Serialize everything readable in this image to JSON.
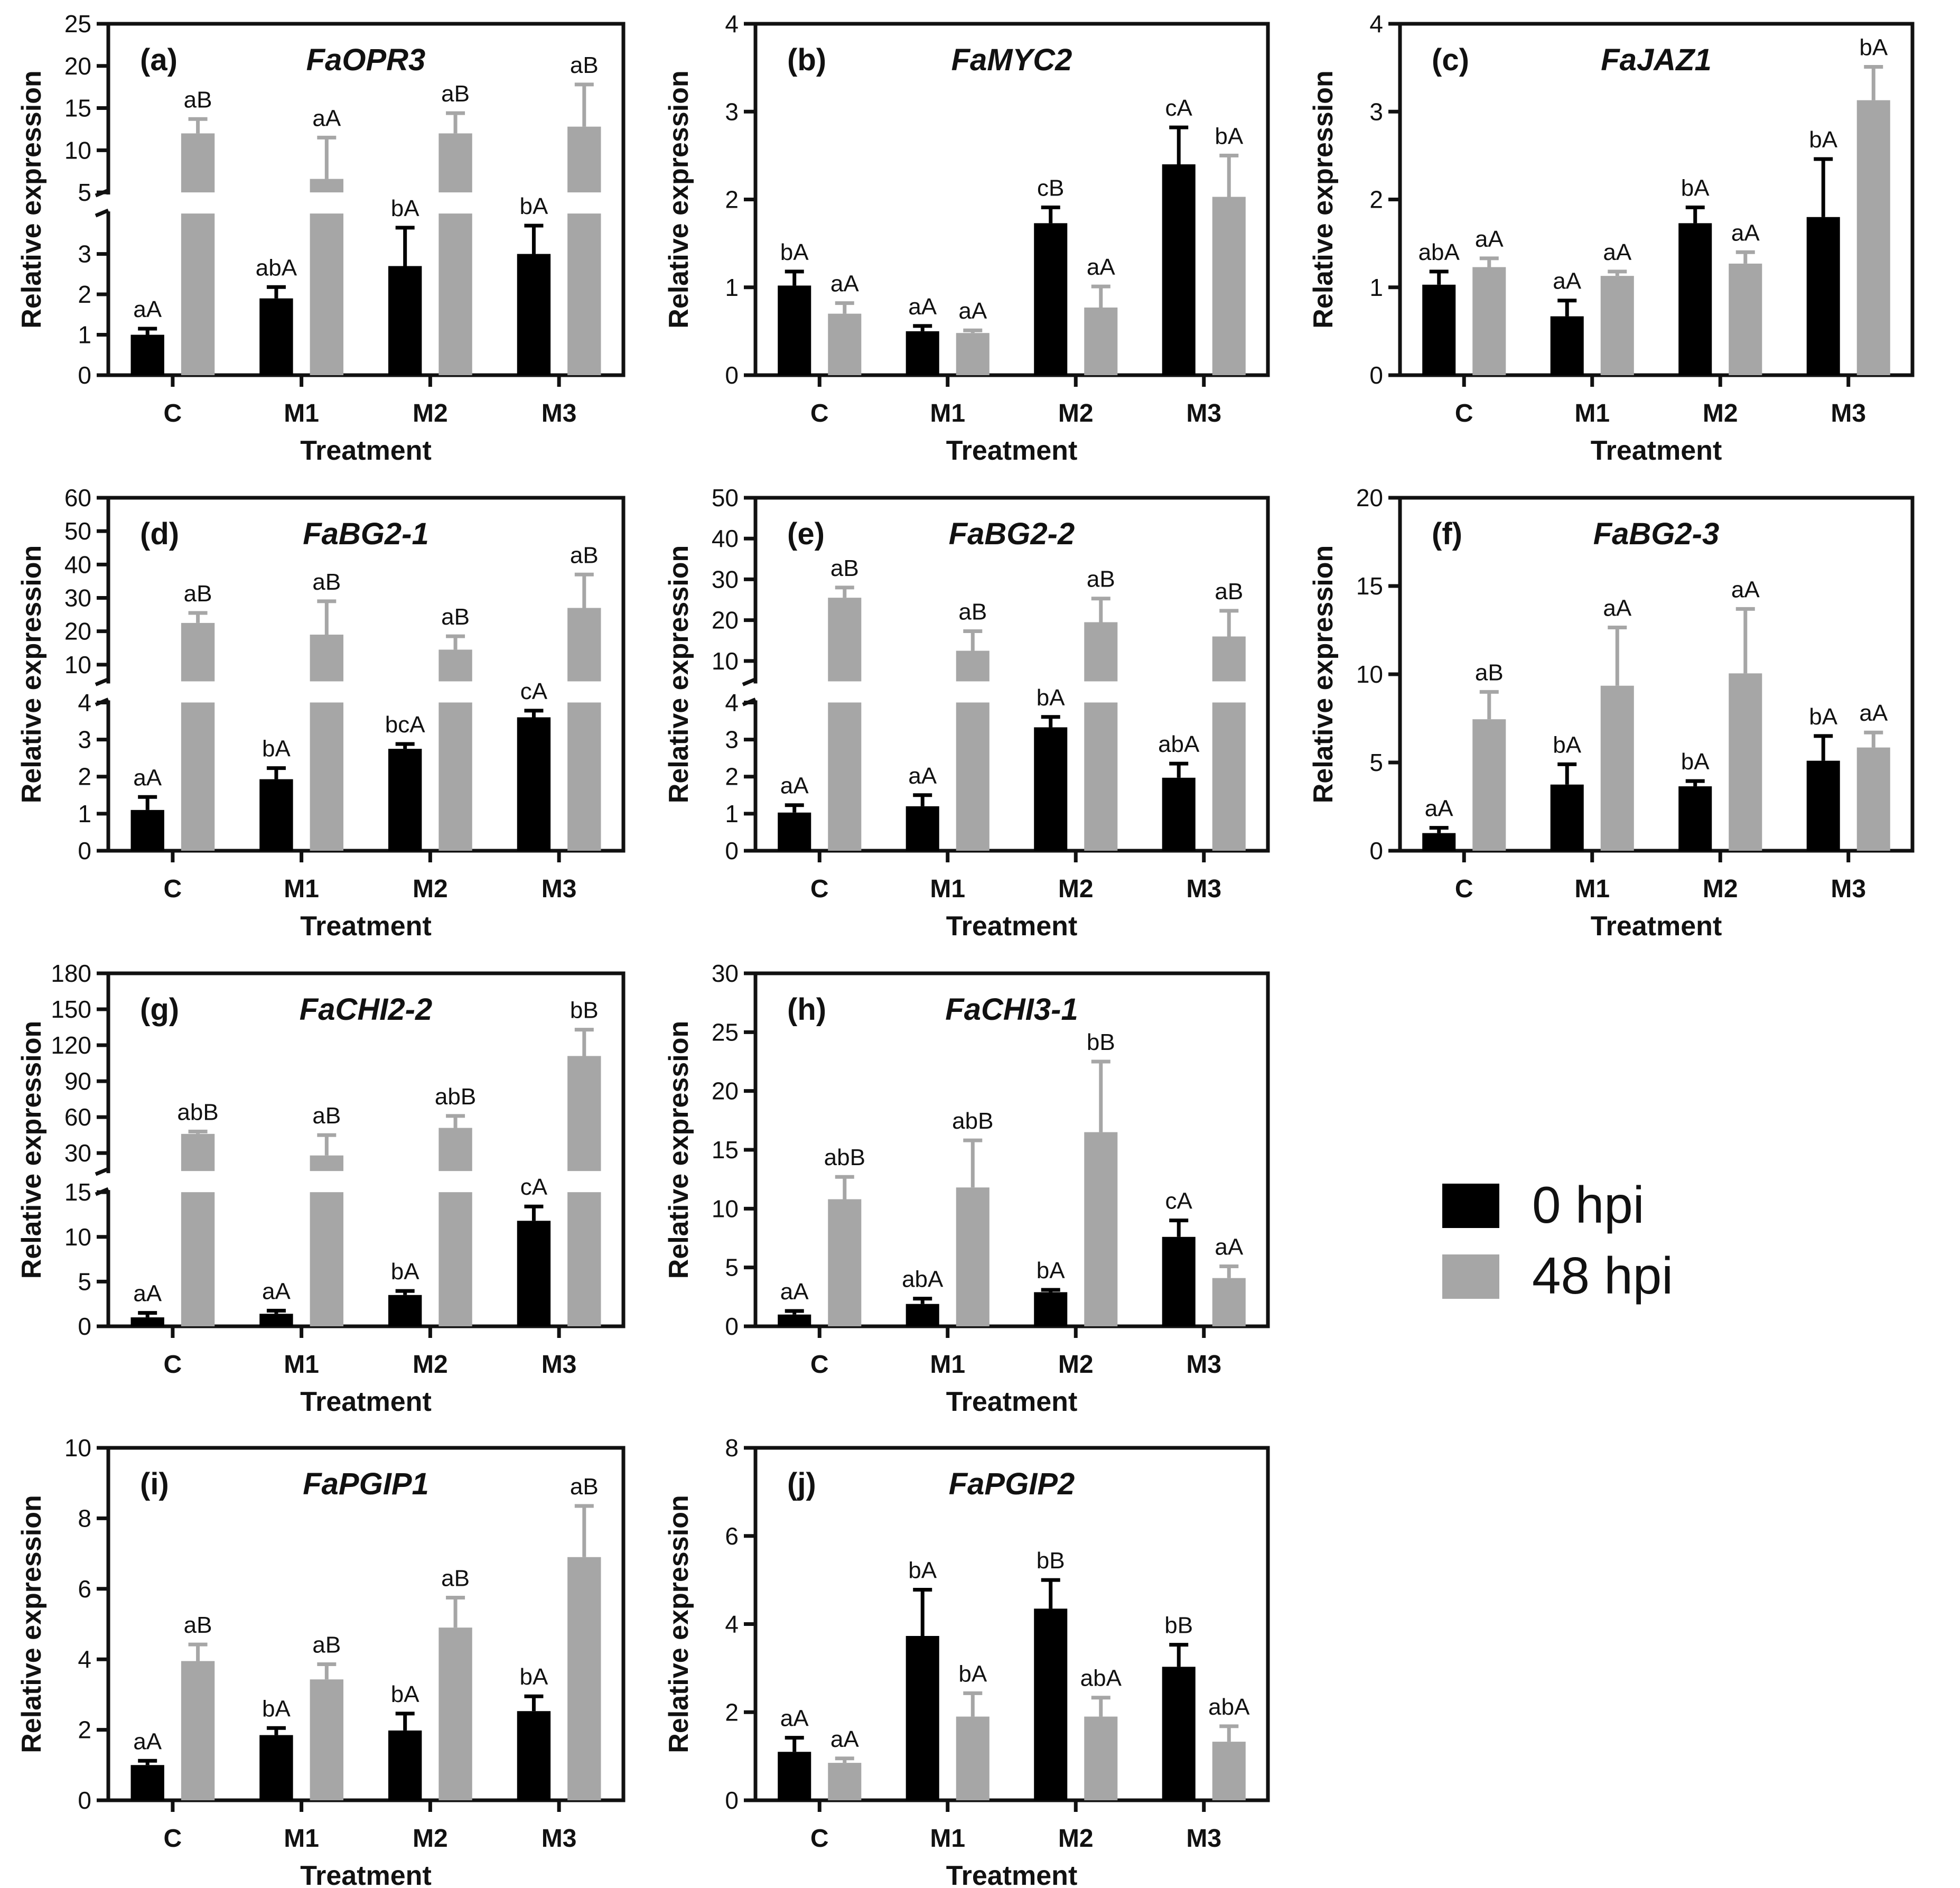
{
  "figure": {
    "legend": [
      {
        "label": "0 hpi",
        "color": "#000000"
      },
      {
        "label": "48 hpi",
        "color": "#A6A6A6"
      }
    ],
    "colors": {
      "series_0hpi": "#000000",
      "series_48hpi": "#A6A6A6",
      "axis": "#111111"
    }
  },
  "chart_data": [
    {
      "type": "bar",
      "panel": "(a)",
      "title": "FaOPR3",
      "xlabel": "Treatment",
      "ylabel": "Relative expression",
      "categories": [
        "C",
        "M1",
        "M2",
        "M3"
      ],
      "broken_axis": true,
      "lower_range": [
        0,
        4
      ],
      "lower_ticks": [
        0,
        1,
        2,
        3
      ],
      "upper_range": [
        5,
        25
      ],
      "upper_ticks": [
        5,
        10,
        15,
        20,
        25
      ],
      "series": [
        {
          "name": "0 hpi",
          "values": [
            1.0,
            1.9,
            2.7,
            3.0
          ],
          "errors": [
            0.15,
            0.28,
            0.95,
            0.7
          ],
          "labels": [
            "aA",
            "abA",
            "bA",
            "bA"
          ]
        },
        {
          "name": "48 hpi",
          "values": [
            12.0,
            6.6,
            12.0,
            12.8
          ],
          "errors": [
            1.7,
            4.9,
            2.4,
            5.0
          ],
          "labels": [
            "aB",
            "aA",
            "aB",
            "aB"
          ]
        }
      ]
    },
    {
      "type": "bar",
      "panel": "(b)",
      "title": "FaMYC2",
      "xlabel": "Treatment",
      "ylabel": "Relative expression",
      "categories": [
        "C",
        "M1",
        "M2",
        "M3"
      ],
      "broken_axis": false,
      "ylim": [
        0,
        4
      ],
      "ticks": [
        0,
        1,
        2,
        3,
        4
      ],
      "series": [
        {
          "name": "0 hpi",
          "values": [
            1.02,
            0.5,
            1.73,
            2.4
          ],
          "errors": [
            0.16,
            0.06,
            0.18,
            0.42
          ],
          "labels": [
            "bA",
            "aA",
            "cB",
            "cA"
          ]
        },
        {
          "name": "48 hpi",
          "values": [
            0.7,
            0.48,
            0.77,
            2.03
          ],
          "errors": [
            0.12,
            0.03,
            0.24,
            0.47
          ],
          "labels": [
            "aA",
            "aA",
            "aA",
            "bA"
          ]
        }
      ]
    },
    {
      "type": "bar",
      "panel": "(c)",
      "title": "FaJAZ1",
      "xlabel": "Treatment",
      "ylabel": "Relative expression",
      "categories": [
        "C",
        "M1",
        "M2",
        "M3"
      ],
      "broken_axis": false,
      "ylim": [
        0,
        4
      ],
      "ticks": [
        0,
        1,
        2,
        3,
        4
      ],
      "series": [
        {
          "name": "0 hpi",
          "values": [
            1.03,
            0.67,
            1.73,
            1.8
          ],
          "errors": [
            0.15,
            0.18,
            0.18,
            0.66
          ],
          "labels": [
            "abA",
            "aA",
            "bA",
            "bA"
          ]
        },
        {
          "name": "48 hpi",
          "values": [
            1.23,
            1.13,
            1.27,
            3.13
          ],
          "errors": [
            0.1,
            0.05,
            0.13,
            0.38
          ],
          "labels": [
            "aA",
            "aA",
            "aA",
            "bA"
          ]
        }
      ]
    },
    {
      "type": "bar",
      "panel": "(d)",
      "title": "FaBG2-1",
      "xlabel": "Treatment",
      "ylabel": "Relative expression",
      "categories": [
        "C",
        "M1",
        "M2",
        "M3"
      ],
      "broken_axis": true,
      "lower_range": [
        0,
        4
      ],
      "lower_ticks": [
        0,
        1,
        2,
        3,
        4
      ],
      "upper_range": [
        5,
        60
      ],
      "upper_ticks": [
        10,
        20,
        30,
        40,
        50,
        60
      ],
      "series": [
        {
          "name": "0 hpi",
          "values": [
            1.1,
            1.93,
            2.75,
            3.6
          ],
          "errors": [
            0.35,
            0.3,
            0.13,
            0.18
          ],
          "labels": [
            "aA",
            "bA",
            "bcA",
            "cA"
          ]
        },
        {
          "name": "48 hpi",
          "values": [
            22.5,
            19.0,
            14.5,
            27.0
          ],
          "errors": [
            3.0,
            10.0,
            4.0,
            10.0
          ],
          "labels": [
            "aB",
            "aB",
            "aB",
            "aB"
          ]
        }
      ]
    },
    {
      "type": "bar",
      "panel": "(e)",
      "title": "FaBG2-2",
      "xlabel": "Treatment",
      "ylabel": "Relative expression",
      "categories": [
        "C",
        "M1",
        "M2",
        "M3"
      ],
      "broken_axis": true,
      "lower_range": [
        0,
        4
      ],
      "lower_ticks": [
        0,
        1,
        2,
        3,
        4
      ],
      "upper_range": [
        5,
        50
      ],
      "upper_ticks": [
        10,
        20,
        30,
        40,
        50
      ],
      "series": [
        {
          "name": "0 hpi",
          "values": [
            1.03,
            1.2,
            3.33,
            1.97
          ],
          "errors": [
            0.2,
            0.3,
            0.28,
            0.38
          ],
          "labels": [
            "aA",
            "aA",
            "bA",
            "abA"
          ]
        },
        {
          "name": "48 hpi",
          "values": [
            25.5,
            12.5,
            19.5,
            16.0
          ],
          "errors": [
            2.5,
            4.8,
            5.8,
            6.3
          ],
          "labels": [
            "aB",
            "aB",
            "aB",
            "aB"
          ]
        }
      ]
    },
    {
      "type": "bar",
      "panel": "(f)",
      "title": "FaBG2-3",
      "xlabel": "Treatment",
      "ylabel": "Relative expression",
      "categories": [
        "C",
        "M1",
        "M2",
        "M3"
      ],
      "broken_axis": false,
      "ylim": [
        0,
        20
      ],
      "ticks": [
        0,
        5,
        10,
        15,
        20
      ],
      "series": [
        {
          "name": "0 hpi",
          "values": [
            1.0,
            3.75,
            3.65,
            5.1
          ],
          "errors": [
            0.3,
            1.15,
            0.3,
            1.4
          ],
          "labels": [
            "aA",
            "bA",
            "bA",
            "bA"
          ]
        },
        {
          "name": "48 hpi",
          "values": [
            7.45,
            9.35,
            10.05,
            5.85
          ],
          "errors": [
            1.55,
            3.3,
            3.65,
            0.85
          ],
          "labels": [
            "aB",
            "aA",
            "aA",
            "aA"
          ]
        }
      ]
    },
    {
      "type": "bar",
      "panel": "(g)",
      "title": "FaCHI2-2",
      "xlabel": "Treatment",
      "ylabel": "Relative expression",
      "categories": [
        "C",
        "M1",
        "M2",
        "M3"
      ],
      "broken_axis": true,
      "lower_range": [
        0,
        15
      ],
      "lower_ticks": [
        0,
        5,
        10,
        15
      ],
      "upper_range": [
        15,
        180
      ],
      "upper_ticks": [
        30,
        60,
        90,
        120,
        150,
        180
      ],
      "series": [
        {
          "name": "0 hpi",
          "values": [
            1.0,
            1.4,
            3.5,
            11.8
          ],
          "errors": [
            0.5,
            0.35,
            0.45,
            1.6
          ],
          "labels": [
            "aA",
            "aA",
            "bA",
            "cA"
          ]
        },
        {
          "name": "48 hpi",
          "values": [
            46.0,
            28.0,
            51.0,
            111.0
          ],
          "errors": [
            2.0,
            17.0,
            10.0,
            22.0
          ],
          "labels": [
            "abB",
            "aB",
            "abB",
            "bB"
          ]
        }
      ]
    },
    {
      "type": "bar",
      "panel": "(h)",
      "title": "FaCHI3-1",
      "xlabel": "Treatment",
      "ylabel": "Relative expression",
      "categories": [
        "C",
        "M1",
        "M2",
        "M3"
      ],
      "broken_axis": false,
      "ylim": [
        0,
        30
      ],
      "ticks": [
        0,
        5,
        10,
        15,
        20,
        25,
        30
      ],
      "series": [
        {
          "name": "0 hpi",
          "values": [
            1.0,
            1.9,
            2.9,
            7.6
          ],
          "errors": [
            0.3,
            0.45,
            0.2,
            1.4
          ],
          "labels": [
            "aA",
            "abA",
            "bA",
            "cA"
          ]
        },
        {
          "name": "48 hpi",
          "values": [
            10.8,
            11.8,
            16.5,
            4.1
          ],
          "errors": [
            1.9,
            4.0,
            6.0,
            1.0
          ],
          "labels": [
            "abB",
            "abB",
            "bB",
            "aA"
          ]
        }
      ]
    },
    {
      "type": "bar",
      "panel": "(i)",
      "title": "FaPGIP1",
      "xlabel": "Treatment",
      "ylabel": "Relative expression",
      "categories": [
        "C",
        "M1",
        "M2",
        "M3"
      ],
      "broken_axis": false,
      "ylim": [
        0,
        10
      ],
      "ticks": [
        0,
        2,
        4,
        6,
        8,
        10
      ],
      "series": [
        {
          "name": "0 hpi",
          "values": [
            1.0,
            1.85,
            1.98,
            2.53
          ],
          "errors": [
            0.12,
            0.2,
            0.48,
            0.42
          ],
          "labels": [
            "aA",
            "bA",
            "bA",
            "bA"
          ]
        },
        {
          "name": "48 hpi",
          "values": [
            3.95,
            3.43,
            4.9,
            6.9
          ],
          "errors": [
            0.47,
            0.43,
            0.85,
            1.45
          ],
          "labels": [
            "aB",
            "aB",
            "aB",
            "aB"
          ]
        }
      ]
    },
    {
      "type": "bar",
      "panel": "(j)",
      "title": "FaPGIP2",
      "xlabel": "Treatment",
      "ylabel": "Relative expression",
      "categories": [
        "C",
        "M1",
        "M2",
        "M3"
      ],
      "broken_axis": false,
      "ylim": [
        0,
        8
      ],
      "ticks": [
        0,
        2,
        4,
        6,
        8
      ],
      "series": [
        {
          "name": "0 hpi",
          "values": [
            1.1,
            3.73,
            4.35,
            3.03
          ],
          "errors": [
            0.32,
            1.05,
            0.65,
            0.5
          ],
          "labels": [
            "aA",
            "bA",
            "bB",
            "bB"
          ]
        },
        {
          "name": "48 hpi",
          "values": [
            0.85,
            1.9,
            1.9,
            1.33
          ],
          "errors": [
            0.1,
            0.53,
            0.43,
            0.35
          ],
          "labels": [
            "aA",
            "bA",
            "abA",
            "abA"
          ]
        }
      ]
    }
  ]
}
